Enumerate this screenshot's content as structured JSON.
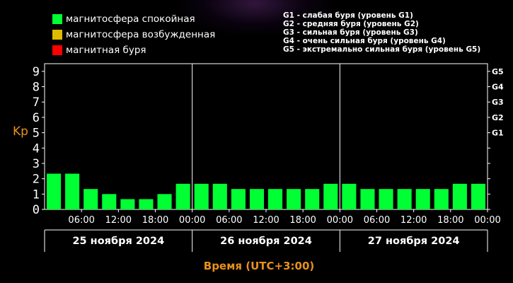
{
  "legend": {
    "items": [
      {
        "label": "магнитосфера спокойная",
        "color": "#00ff33"
      },
      {
        "label": "магнитосфера возбужденная",
        "color": "#ddbb00"
      },
      {
        "label": "магнитная буря",
        "color": "#ff0000"
      }
    ],
    "storm_levels": [
      "G1 - слабая буря (уровень G1)",
      "G2 - средняя буря (уровень G2)",
      "G3 - сильная буря (уровень G3)",
      "G4 - очень сильная буря (уровень G4)",
      "G5 - экстремально сильная буря (уровень G5)"
    ]
  },
  "chart_data": {
    "type": "bar",
    "ylabel": "Kp",
    "xlabel": "Время (UTC+3:00)",
    "ylim": [
      0,
      9.5
    ],
    "yticks": [
      0,
      1,
      2,
      3,
      4,
      5,
      6,
      7,
      8,
      9
    ],
    "g_labels": [
      {
        "label": "G1",
        "kp": 5
      },
      {
        "label": "G2",
        "kp": 6
      },
      {
        "label": "G3",
        "kp": 7
      },
      {
        "label": "G4",
        "kp": 8
      },
      {
        "label": "G5",
        "kp": 9
      }
    ],
    "x_tick_labels": [
      "06:00",
      "12:00",
      "18:00",
      "00:00",
      "06:00",
      "12:00",
      "18:00",
      "00:00",
      "06:00",
      "12:00",
      "18:00",
      "00:00"
    ],
    "days": [
      "25 ноября 2024",
      "26 ноября 2024",
      "27 ноября 2024"
    ],
    "bars_per_day": 8,
    "values": [
      2.33,
      2.33,
      1.33,
      1.0,
      0.67,
      0.67,
      1.0,
      1.67,
      1.67,
      1.67,
      1.33,
      1.33,
      1.33,
      1.33,
      1.33,
      1.67,
      1.67,
      1.33,
      1.33,
      1.33,
      1.33,
      1.33,
      1.67,
      1.67
    ],
    "bar_color": "#00ff33",
    "grid": false
  }
}
